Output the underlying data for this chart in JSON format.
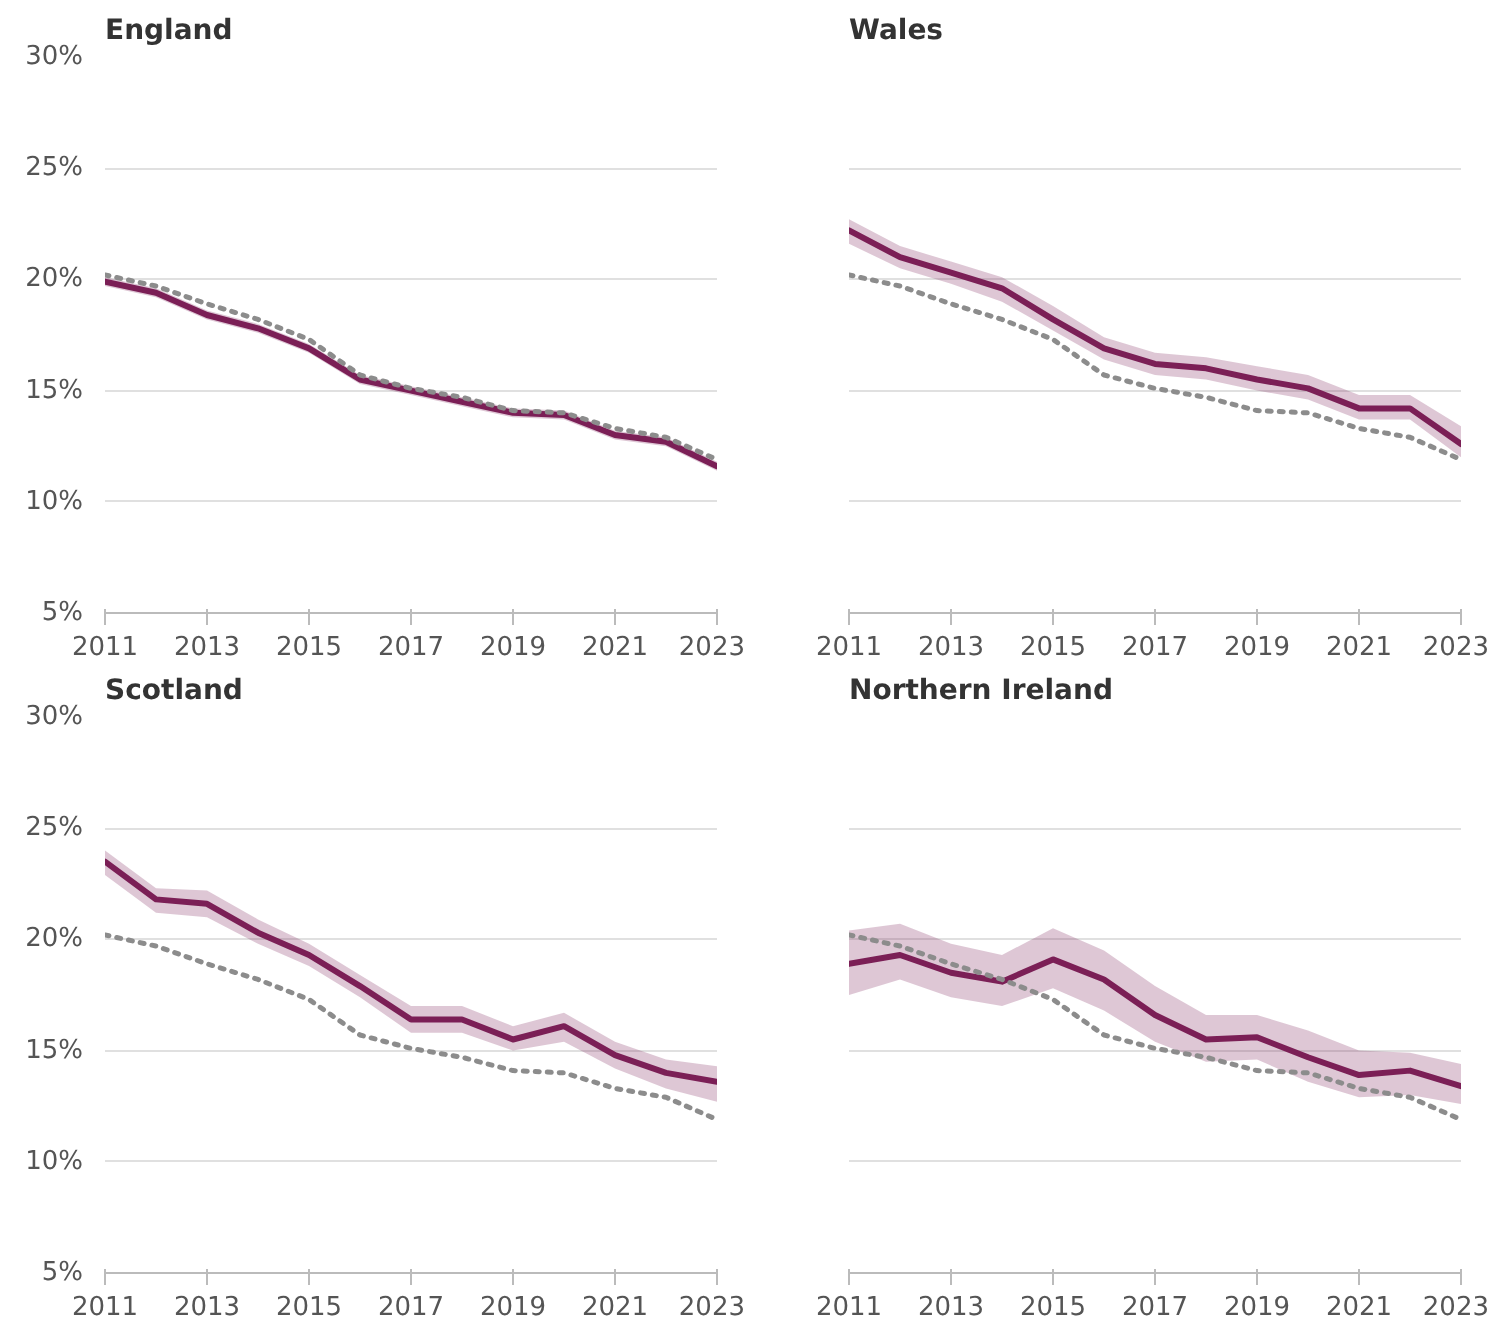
{
  "chart_data": [
    {
      "type": "line",
      "title": "England",
      "x": [
        2011,
        2012,
        2013,
        2014,
        2015,
        2016,
        2017,
        2018,
        2019,
        2020,
        2021,
        2022,
        2023
      ],
      "xlim": [
        2011,
        2023
      ],
      "xticks": [
        2011,
        2013,
        2015,
        2017,
        2019,
        2021,
        2023
      ],
      "ylim": [
        5,
        30
      ],
      "yticks": [
        {
          "value": 5,
          "label": "5%"
        },
        {
          "value": 10,
          "label": "10%"
        },
        {
          "value": 15,
          "label": "15%"
        },
        {
          "value": 20,
          "label": "20%"
        },
        {
          "value": 25,
          "label": "25%"
        },
        {
          "value": 30,
          "label": "30%"
        }
      ],
      "grid": "y",
      "series": [
        {
          "color": "#7b1f56",
          "line_style": "solid",
          "values": [
            19.9,
            19.4,
            18.4,
            17.8,
            16.9,
            15.5,
            15.0,
            14.5,
            14.0,
            13.9,
            13.0,
            12.7,
            11.6
          ],
          "lower": [
            19.7,
            19.2,
            18.2,
            17.6,
            16.7,
            15.3,
            14.8,
            14.3,
            13.8,
            13.7,
            12.8,
            12.5,
            11.4
          ],
          "upper": [
            20.1,
            19.6,
            18.6,
            18.0,
            17.1,
            15.7,
            15.2,
            14.7,
            14.2,
            14.1,
            13.2,
            12.9,
            11.8
          ]
        },
        {
          "color": "#8c8c8c",
          "line_style": "dotted",
          "values": [
            20.2,
            19.7,
            18.9,
            18.2,
            17.3,
            15.7,
            15.1,
            14.7,
            14.1,
            14.0,
            13.3,
            12.9,
            11.9
          ]
        }
      ]
    },
    {
      "type": "line",
      "title": "Wales",
      "x": [
        2011,
        2012,
        2013,
        2014,
        2015,
        2016,
        2017,
        2018,
        2019,
        2020,
        2021,
        2022,
        2023
      ],
      "xlim": [
        2011,
        2023
      ],
      "xticks": [
        2011,
        2013,
        2015,
        2017,
        2019,
        2021,
        2023
      ],
      "ylim": [
        5,
        30
      ],
      "yticks": [
        {
          "value": 5,
          "label": null
        },
        {
          "value": 10,
          "label": null
        },
        {
          "value": 15,
          "label": null
        },
        {
          "value": 20,
          "label": null
        },
        {
          "value": 25,
          "label": null
        },
        {
          "value": 30,
          "label": null
        }
      ],
      "grid": "y",
      "tick_labels": "x",
      "series": [
        {
          "color": "#7b1f56",
          "line_style": "solid",
          "values": [
            22.2,
            21.0,
            20.3,
            19.6,
            18.2,
            16.9,
            16.2,
            16.0,
            15.5,
            15.1,
            14.2,
            14.2,
            12.6
          ],
          "lower": [
            21.6,
            20.5,
            19.8,
            19.0,
            17.7,
            16.4,
            15.7,
            15.5,
            15.0,
            14.6,
            13.7,
            13.7,
            12.0
          ],
          "upper": [
            22.7,
            21.5,
            20.8,
            20.1,
            18.8,
            17.4,
            16.7,
            16.5,
            16.1,
            15.7,
            14.8,
            14.8,
            13.4
          ]
        },
        {
          "color": "#8c8c8c",
          "line_style": "dotted",
          "values": [
            20.2,
            19.7,
            18.9,
            18.2,
            17.3,
            15.7,
            15.1,
            14.7,
            14.1,
            14.0,
            13.3,
            12.9,
            11.9
          ]
        }
      ]
    },
    {
      "type": "line",
      "title": "Scotland",
      "x": [
        2011,
        2012,
        2013,
        2014,
        2015,
        2016,
        2017,
        2018,
        2019,
        2020,
        2021,
        2022,
        2023
      ],
      "xlim": [
        2011,
        2023
      ],
      "xticks": [
        2011,
        2013,
        2015,
        2017,
        2019,
        2021,
        2023
      ],
      "ylim": [
        5,
        30
      ],
      "yticks": [
        {
          "value": 5,
          "label": "5%"
        },
        {
          "value": 10,
          "label": "10%"
        },
        {
          "value": 15,
          "label": "15%"
        },
        {
          "value": 20,
          "label": "20%"
        },
        {
          "value": 25,
          "label": "25%"
        },
        {
          "value": 30,
          "label": "30%"
        }
      ],
      "grid": "y",
      "series": [
        {
          "color": "#7b1f56",
          "line_style": "solid",
          "values": [
            23.5,
            21.8,
            21.6,
            20.3,
            19.3,
            17.9,
            16.4,
            16.4,
            15.5,
            16.1,
            14.8,
            14.0,
            13.6
          ],
          "lower": [
            22.9,
            21.2,
            21.0,
            19.8,
            18.8,
            17.4,
            15.8,
            15.8,
            15.0,
            15.4,
            14.2,
            13.3,
            12.7
          ],
          "upper": [
            24.0,
            22.3,
            22.2,
            20.9,
            19.8,
            18.4,
            17.0,
            17.0,
            16.1,
            16.7,
            15.4,
            14.6,
            14.3
          ]
        },
        {
          "color": "#8c8c8c",
          "line_style": "dotted",
          "values": [
            20.2,
            19.7,
            18.9,
            18.2,
            17.3,
            15.7,
            15.1,
            14.7,
            14.1,
            14.0,
            13.3,
            12.9,
            11.9
          ]
        }
      ]
    },
    {
      "type": "line",
      "title": "Northern Ireland",
      "x": [
        2011,
        2012,
        2013,
        2014,
        2015,
        2016,
        2017,
        2018,
        2019,
        2020,
        2021,
        2022,
        2023
      ],
      "xlim": [
        2011,
        2023
      ],
      "xticks": [
        2011,
        2013,
        2015,
        2017,
        2019,
        2021,
        2023
      ],
      "ylim": [
        5,
        30
      ],
      "yticks": [
        {
          "value": 5,
          "label": null
        },
        {
          "value": 10,
          "label": null
        },
        {
          "value": 15,
          "label": null
        },
        {
          "value": 20,
          "label": null
        },
        {
          "value": 25,
          "label": null
        },
        {
          "value": 30,
          "label": null
        }
      ],
      "grid": "y",
      "tick_labels": "x",
      "series": [
        {
          "color": "#7b1f56",
          "line_style": "solid",
          "values": [
            18.9,
            19.3,
            18.5,
            18.1,
            19.1,
            18.2,
            16.6,
            15.5,
            15.6,
            14.7,
            13.9,
            14.1,
            13.4
          ],
          "lower": [
            17.5,
            18.2,
            17.4,
            17.0,
            17.8,
            16.8,
            15.4,
            14.5,
            14.6,
            13.6,
            12.9,
            13.0,
            12.6
          ],
          "upper": [
            20.4,
            20.7,
            19.8,
            19.3,
            20.5,
            19.5,
            17.9,
            16.6,
            16.6,
            15.9,
            15.0,
            14.9,
            14.4
          ]
        },
        {
          "color": "#8c8c8c",
          "line_style": "dotted",
          "values": [
            20.2,
            19.7,
            18.9,
            18.2,
            17.3,
            15.7,
            15.1,
            14.7,
            14.1,
            14.0,
            13.3,
            12.9,
            11.9
          ]
        }
      ]
    }
  ]
}
